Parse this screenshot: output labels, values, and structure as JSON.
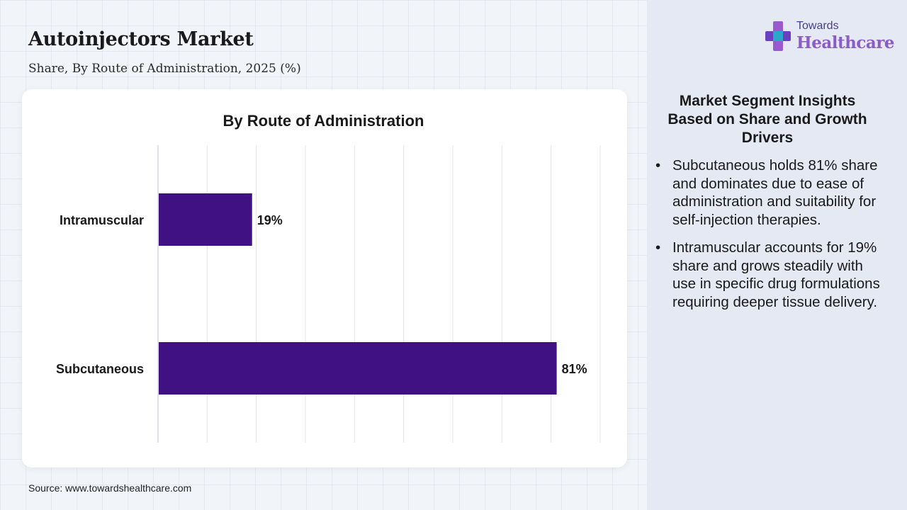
{
  "header": {
    "title": "Autoinjectors Market",
    "subtitle": "Share, By Route of Administration, 2025 (%)"
  },
  "logo": {
    "top": "Towards",
    "main": "Healthcare"
  },
  "chart_data": {
    "type": "bar",
    "orientation": "horizontal",
    "title": "By Route of Administration",
    "categories": [
      "Intramuscular",
      "Subcutaneous"
    ],
    "values": [
      19,
      81
    ],
    "value_labels": [
      "19%",
      "81%"
    ],
    "xlim": [
      0,
      90
    ],
    "grid": true,
    "bar_color": "#3f1183"
  },
  "insights": {
    "title": "Market Segment Insights Based on Share and Growth Drivers",
    "items": [
      "Subcutaneous holds 81% share and dominates due to ease of administration and suitability for self-injection therapies.",
      "Intramuscular accounts for 19% share and grows steadily with use in specific drug formulations requiring deeper tissue delivery."
    ]
  },
  "footer": {
    "source": "Source: www.towardshealthcare.com"
  },
  "colors": {
    "accent": "#3f1183",
    "brand": "#8b5cc8",
    "panel": "#e4e9f3"
  }
}
